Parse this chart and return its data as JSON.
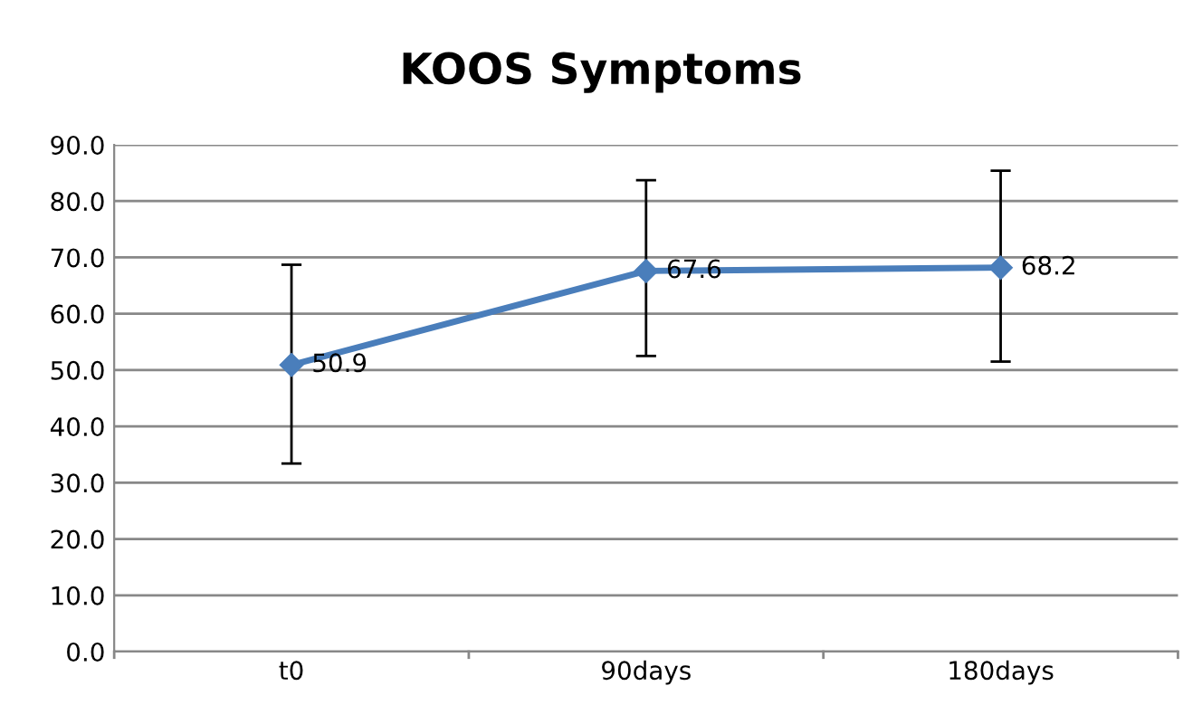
{
  "chart_data": {
    "type": "line",
    "title": "KOOS Symptoms",
    "categories": [
      "t0",
      "90days",
      "180days"
    ],
    "values": [
      50.9,
      67.6,
      68.2
    ],
    "errors": [
      [
        33.4,
        68.7
      ],
      [
        52.5,
        83.7
      ],
      [
        51.5,
        85.4
      ]
    ],
    "color": "#4a7ebb",
    "marker": "diamond",
    "data_labels": true,
    "ylim": [
      0,
      90
    ],
    "yticks": [
      {
        "value": 0,
        "label": "0.0"
      },
      {
        "value": 10,
        "label": "10.0"
      },
      {
        "value": 20,
        "label": "20.0"
      },
      {
        "value": 30,
        "label": "30.0"
      },
      {
        "value": 40,
        "label": "40.0"
      },
      {
        "value": 50,
        "label": "50.0"
      },
      {
        "value": 60,
        "label": "60.0"
      },
      {
        "value": 70,
        "label": "70.0"
      },
      {
        "value": 80,
        "label": "80.0"
      },
      {
        "value": 90,
        "label": "90.0"
      }
    ],
    "grid": "y",
    "legend": false
  }
}
